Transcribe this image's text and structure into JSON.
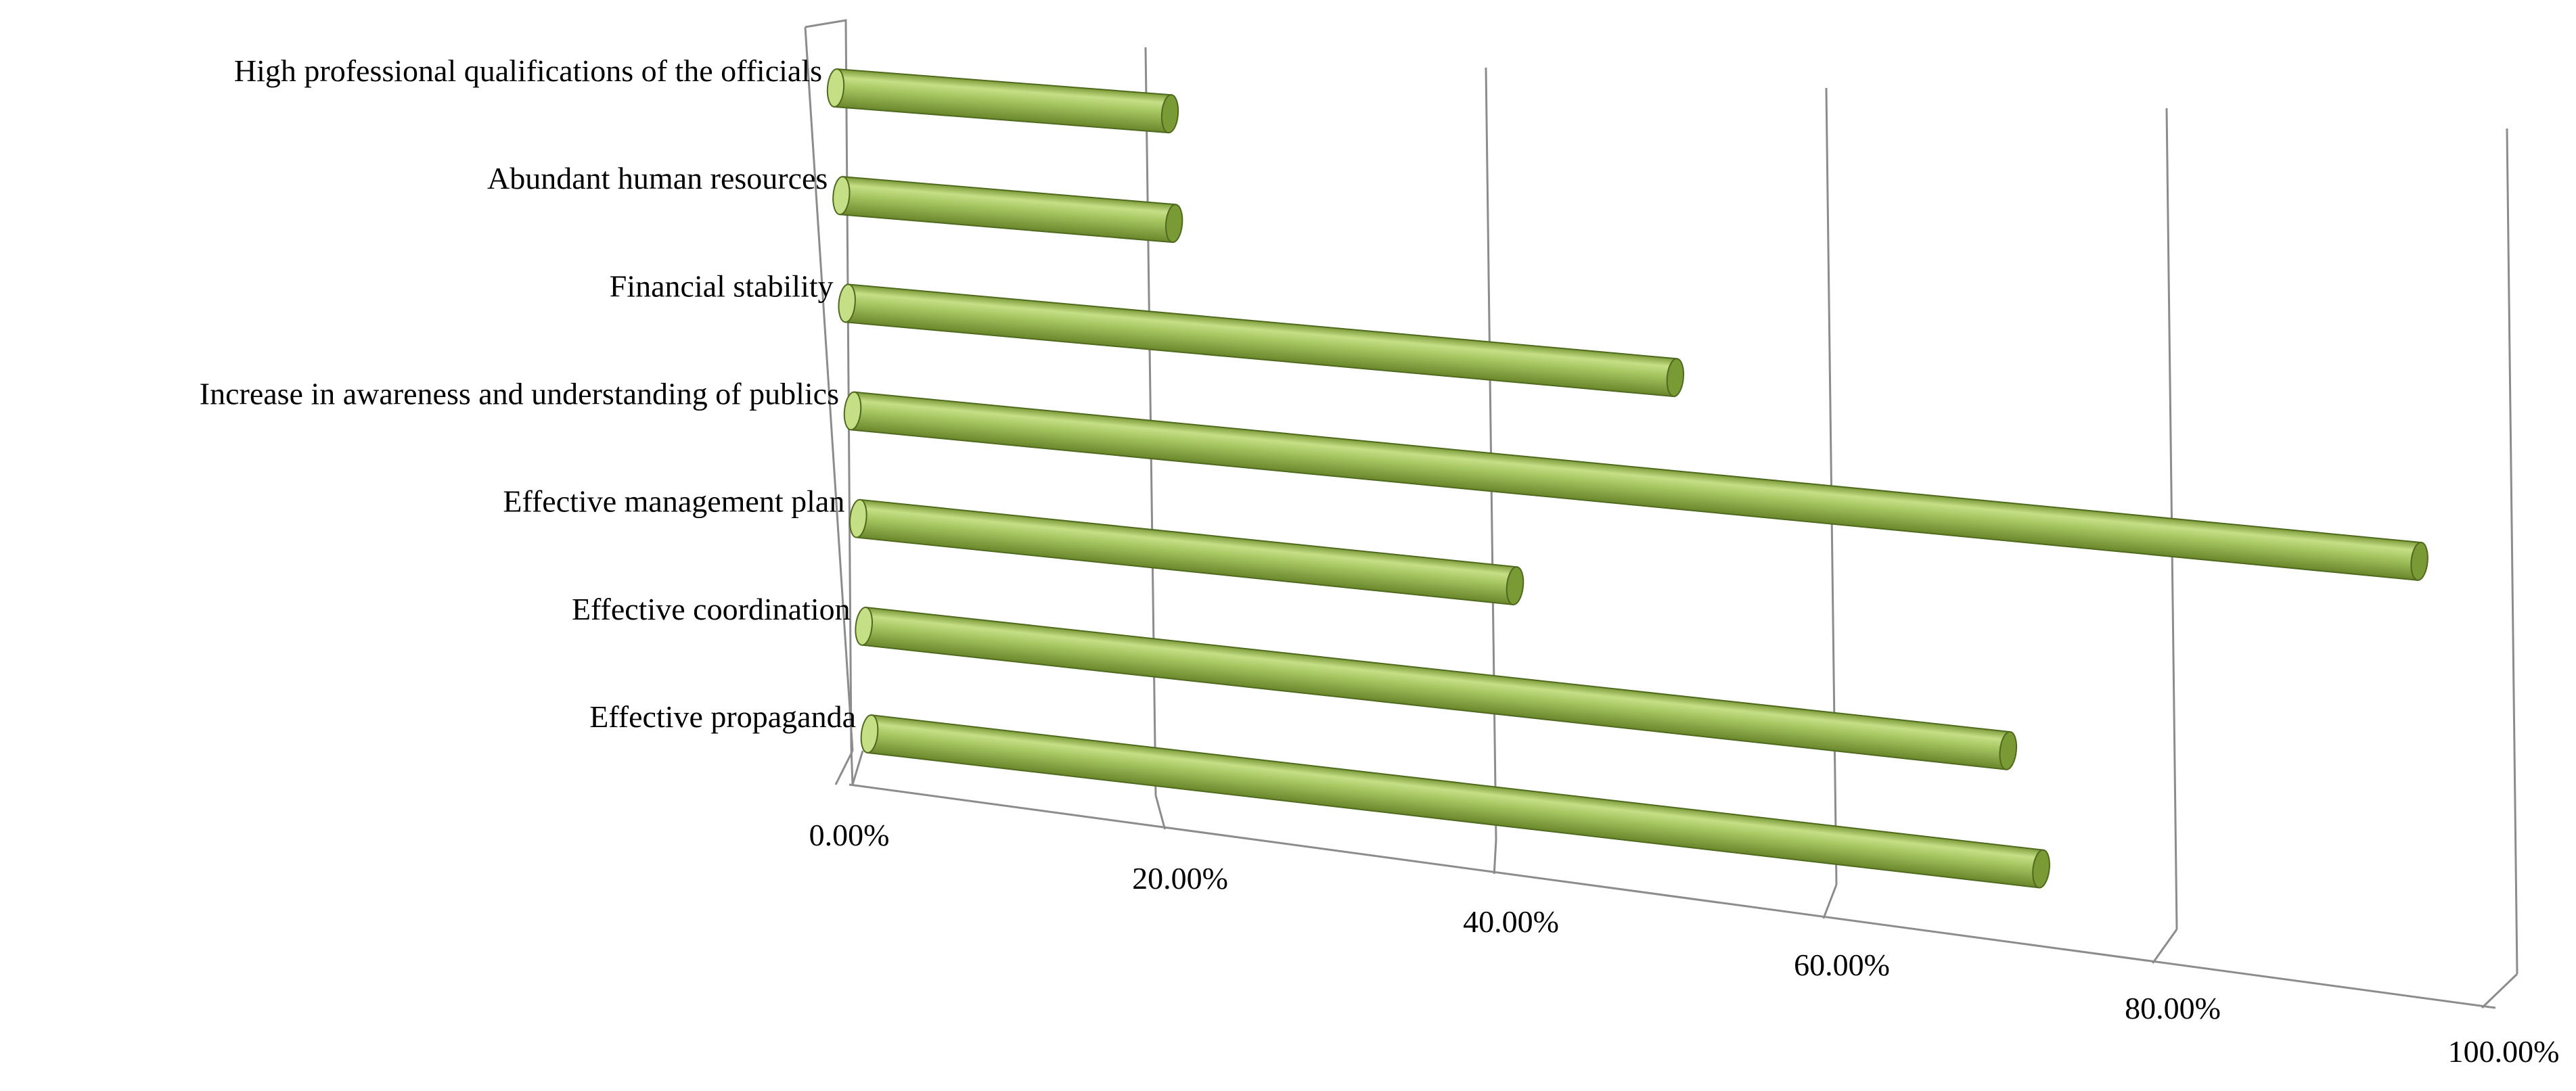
{
  "chart_data": {
    "type": "bar",
    "orientation": "horizontal",
    "style": "3d-cylinder",
    "title": "",
    "xlabel": "",
    "ylabel": "",
    "categories": [
      "High professional  qualifications of the officials",
      "Abundant human resources",
      "Financial stability",
      "Increase in awareness and understanding of publics",
      "Effective management plan",
      "Effective coordination",
      "Effective  propaganda"
    ],
    "values": [
      0.2,
      0.2,
      0.5,
      0.95,
      0.4,
      0.7,
      0.72
    ],
    "xlim": [
      0,
      1
    ],
    "ticks": [
      "0.00%",
      "20.00%",
      "40.00%",
      "60.00%",
      "80.00%",
      "100.00%"
    ],
    "grid": true,
    "legend": "none",
    "colors": {
      "bar": "#9bbb59",
      "bar_light": "#c5df86",
      "bar_dark": "#6f8c2c",
      "bar_cap": "#7a9a35",
      "grid": "#8c8c8c"
    }
  }
}
